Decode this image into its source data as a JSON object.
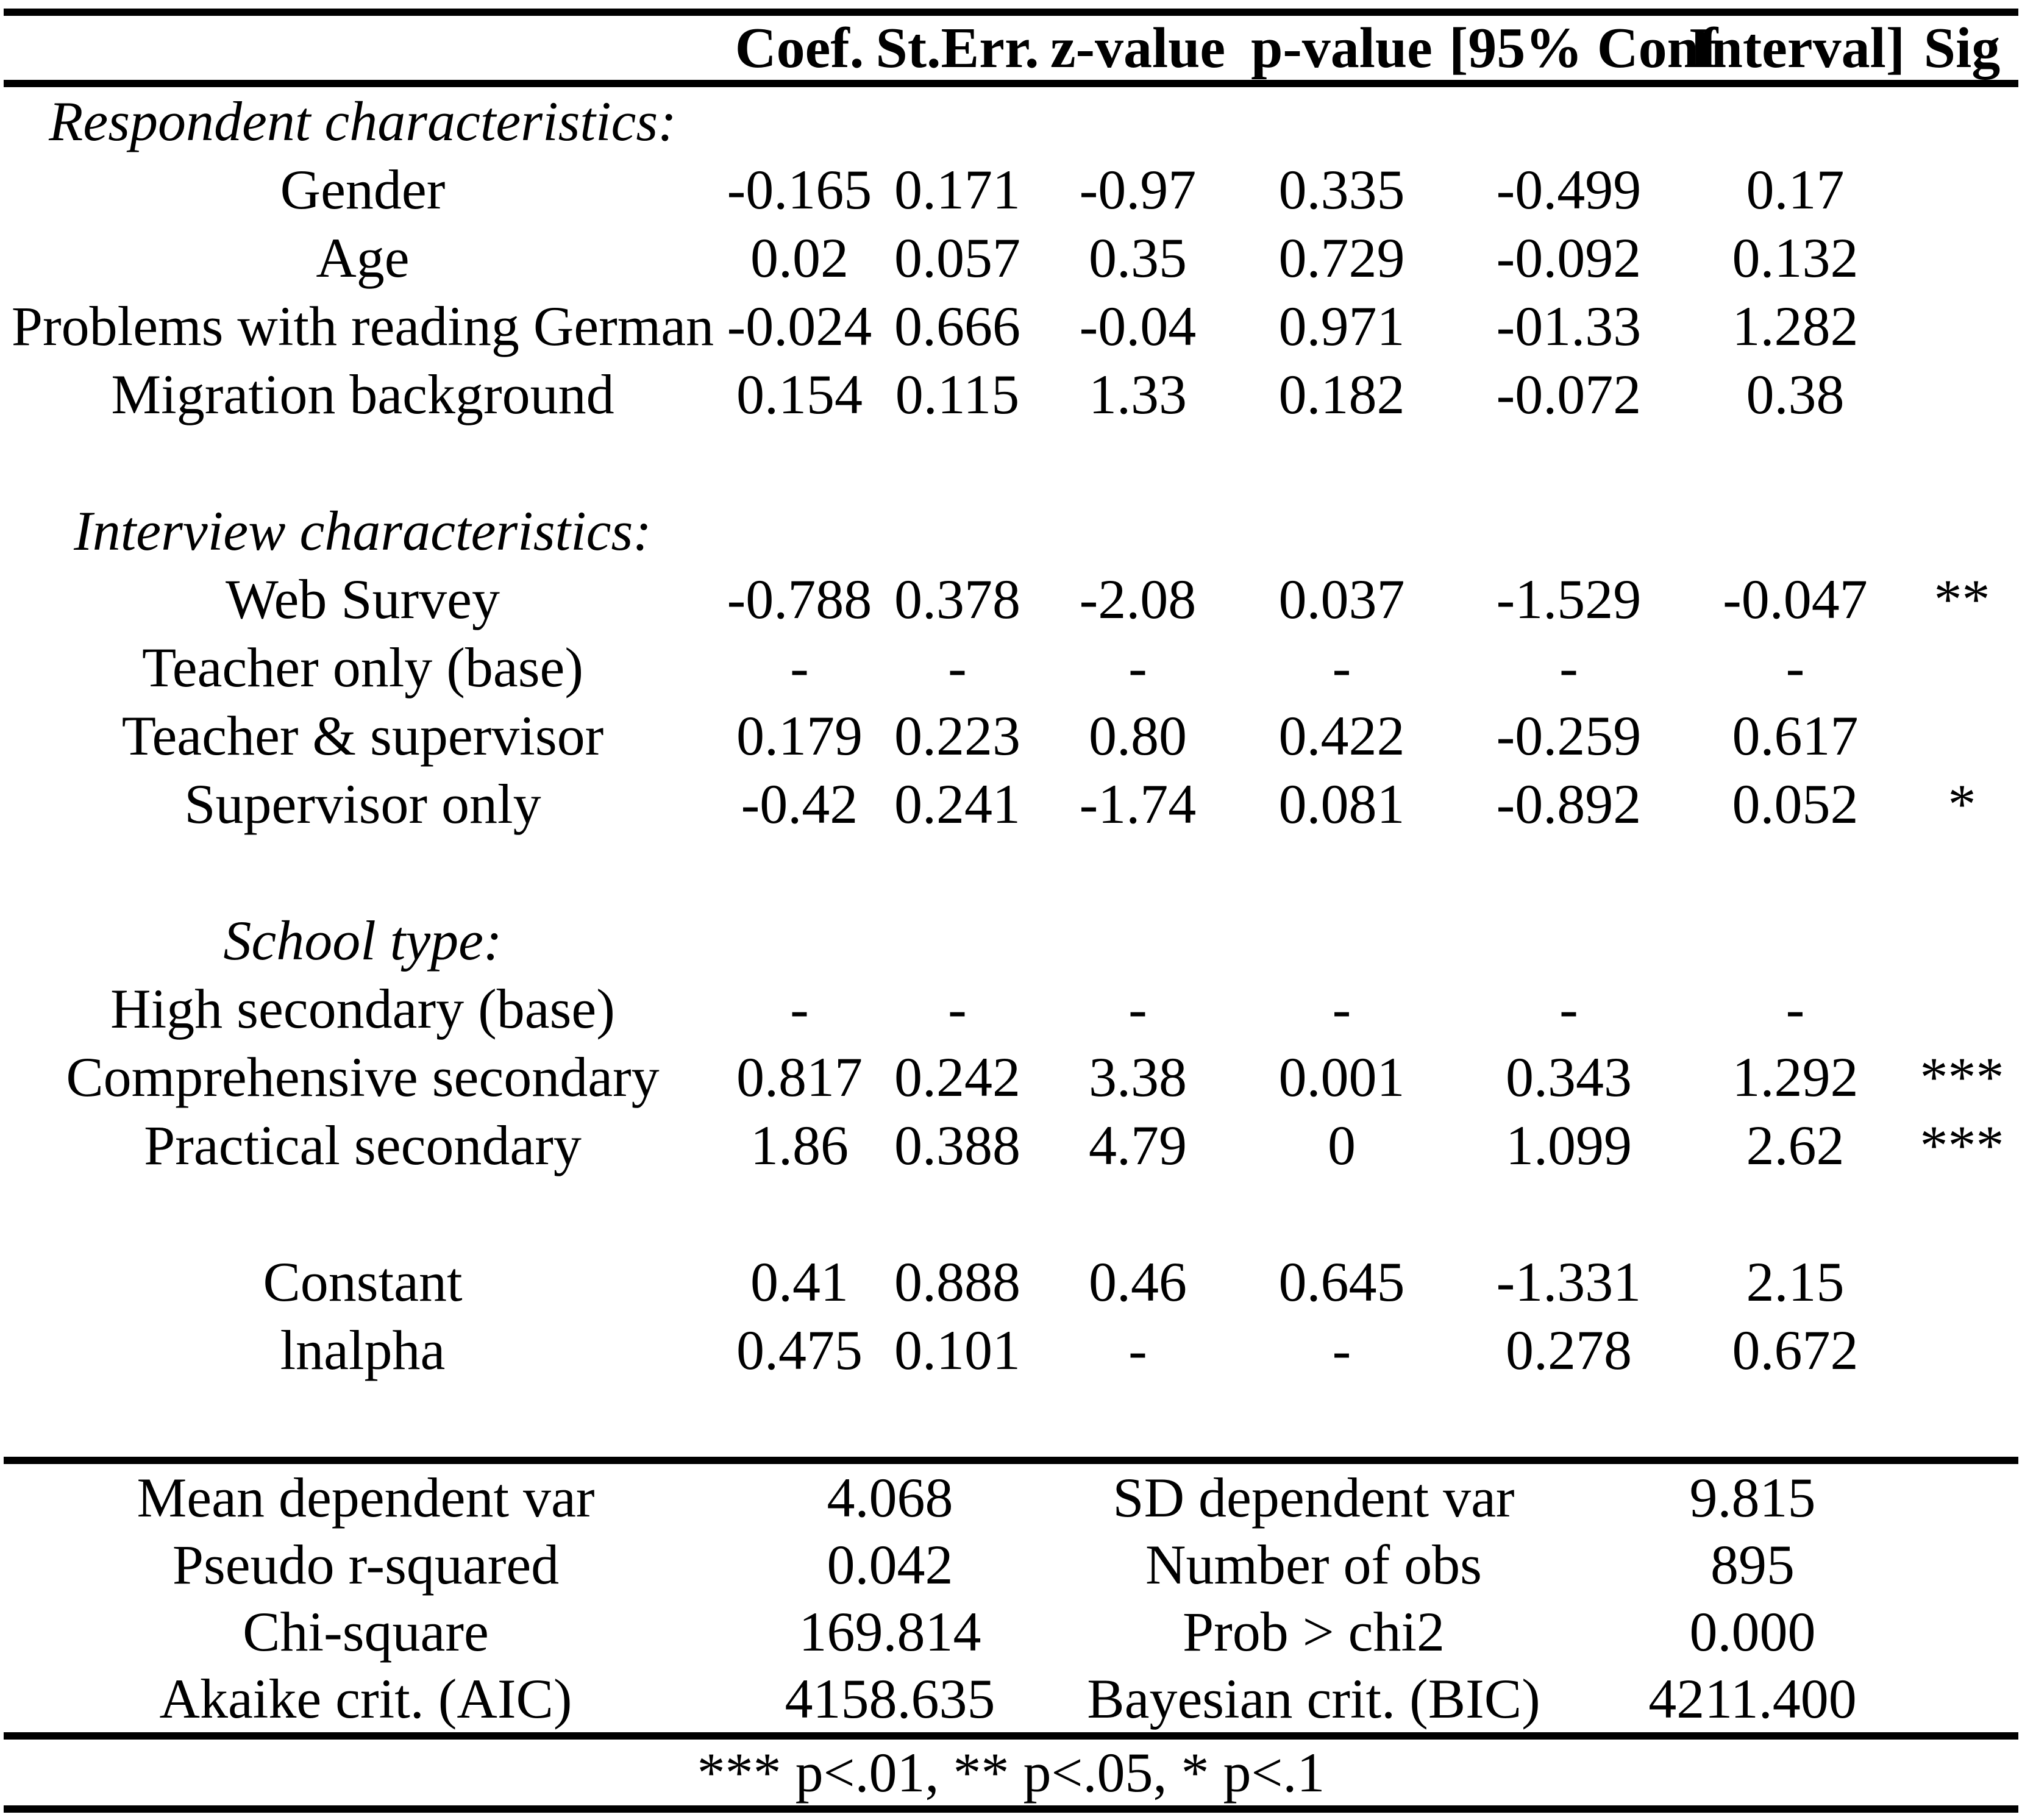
{
  "colors": {
    "text": "#000000",
    "background": "#ffffff",
    "rule": "#000000"
  },
  "header": {
    "label": "",
    "coef": "Coef.",
    "sterr": "St.Err.",
    "z": "z-value",
    "p": "p-value",
    "conf_lo": "[95% Conf",
    "conf_hi": "Interval]",
    "sig": "Sig"
  },
  "rows": [
    {
      "type": "section",
      "label": "Respondent characteristics:"
    },
    {
      "type": "data",
      "label": "Gender",
      "coef": "-0.165",
      "sterr": "0.171",
      "z": "-0.97",
      "p": "0.335",
      "lo": "-0.499",
      "hi": "0.17",
      "sig": ""
    },
    {
      "type": "data",
      "label": "Age",
      "coef": "0.02",
      "sterr": "0.057",
      "z": "0.35",
      "p": "0.729",
      "lo": "-0.092",
      "hi": "0.132",
      "sig": ""
    },
    {
      "type": "data",
      "label": "Problems with reading German",
      "coef": "-0.024",
      "sterr": "0.666",
      "z": "-0.04",
      "p": "0.971",
      "lo": "-01.33",
      "hi": "1.282",
      "sig": ""
    },
    {
      "type": "data",
      "label": "Migration background",
      "coef": "0.154",
      "sterr": "0.115",
      "z": "1.33",
      "p": "0.182",
      "lo": "-0.072",
      "hi": "0.38",
      "sig": ""
    },
    {
      "type": "section",
      "label": "Interview characteristics:"
    },
    {
      "type": "data",
      "label": "Web Survey",
      "coef": "-0.788",
      "sterr": "0.378",
      "z": "-2.08",
      "p": "0.037",
      "lo": "-1.529",
      "hi": "-0.047",
      "sig": "**"
    },
    {
      "type": "data",
      "label": "Teacher only (base)",
      "coef": "-",
      "sterr": "-",
      "z": "-",
      "p": "-",
      "lo": "-",
      "hi": "-",
      "sig": ""
    },
    {
      "type": "data",
      "label": "Teacher & supervisor",
      "coef": "0.179",
      "sterr": "0.223",
      "z": "0.80",
      "p": "0.422",
      "lo": "-0.259",
      "hi": "0.617",
      "sig": ""
    },
    {
      "type": "data",
      "label": "Supervisor only",
      "coef": "-0.42",
      "sterr": "0.241",
      "z": "-1.74",
      "p": "0.081",
      "lo": "-0.892",
      "hi": "0.052",
      "sig": "*"
    },
    {
      "type": "section",
      "label": "School type:"
    },
    {
      "type": "data",
      "label": "High secondary (base)",
      "coef": "-",
      "sterr": "-",
      "z": "-",
      "p": "-",
      "lo": "-",
      "hi": "-",
      "sig": ""
    },
    {
      "type": "data",
      "label": "Comprehensive secondary",
      "coef": "0.817",
      "sterr": "0.242",
      "z": "3.38",
      "p": "0.001",
      "lo": "0.343",
      "hi": "1.292",
      "sig": "***"
    },
    {
      "type": "data",
      "label": "Practical secondary",
      "coef": "1.86",
      "sterr": "0.388",
      "z": "4.79",
      "p": "0",
      "lo": "1.099",
      "hi": "2.62",
      "sig": "***"
    },
    {
      "type": "data",
      "label": "Constant",
      "coef": "0.41",
      "sterr": "0.888",
      "z": "0.46",
      "p": "0.645",
      "lo": "-1.331",
      "hi": "2.15",
      "sig": ""
    },
    {
      "type": "data",
      "label": "lnalpha",
      "coef": "0.475",
      "sterr": "0.101",
      "z": "-",
      "p": "-",
      "lo": "0.278",
      "hi": "0.672",
      "sig": ""
    }
  ],
  "summary": {
    "rows": [
      {
        "label_left": "Mean dependent var",
        "value_left": "4.068",
        "label_right": "SD dependent var",
        "value_right": "9.815"
      },
      {
        "label_left": "Pseudo r-squared",
        "value_left": "0.042",
        "label_right": "Number of obs",
        "value_right": "895"
      },
      {
        "label_left": "Chi-square",
        "value_left": "169.814",
        "label_right": "Prob > chi2",
        "value_right": "0.000"
      },
      {
        "label_left": "Akaike crit. (AIC)",
        "value_left": "4158.635",
        "label_right": "Bayesian crit. (BIC)",
        "value_right": "4211.400"
      }
    ]
  },
  "footnote": "*** p<.01, ** p<.05, * p<.1"
}
